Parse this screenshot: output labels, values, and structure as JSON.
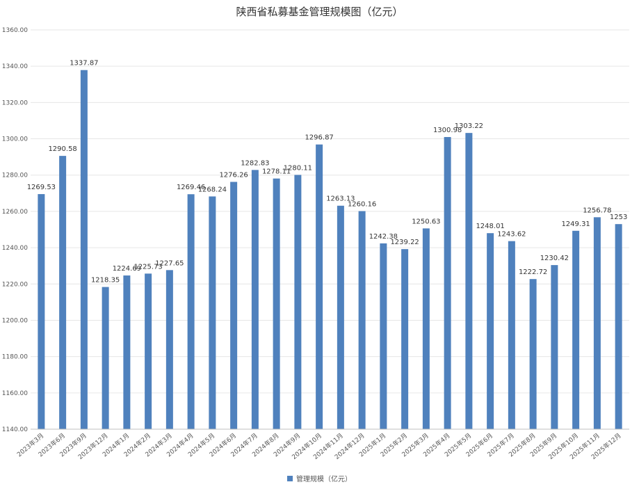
{
  "chart_data": {
    "type": "bar",
    "title": "陕西省私募基金管理规模图（亿元）",
    "categories": [
      "2023年3月",
      "2023年6月",
      "2023年9月",
      "2023年12月",
      "2024年1月",
      "2024年2月",
      "2024年3月",
      "2024年4月",
      "2024年5月",
      "2024年6月",
      "2024年7月",
      "2024年8月",
      "2024年9月",
      "2024年10月",
      "2024年11月",
      "2024年12月",
      "2025年1月",
      "2025年2月",
      "2025年3月",
      "2025年4月",
      "2025年5月",
      "2025年6月",
      "2025年7月",
      "2025年8月",
      "2025年9月",
      "2025年10月",
      "2025年11月",
      "2025年12月"
    ],
    "series": [
      {
        "name": "管理规模（亿元）",
        "values": [
          1269.53,
          1290.58,
          1337.87,
          1218.35,
          1224.69,
          1225.73,
          1227.65,
          1269.46,
          1268.24,
          1276.26,
          1282.83,
          1278.11,
          1280.11,
          1296.87,
          1263.13,
          1260.16,
          1242.38,
          1239.22,
          1250.63,
          1300.98,
          1303.22,
          1248.01,
          1243.62,
          1222.72,
          1230.42,
          1249.31,
          1256.78,
          1253
        ],
        "labels": [
          "1269.53",
          "1290.58",
          "1337.87",
          "1218.35",
          "1224.69",
          "1225.73",
          "1227.65",
          "1269.46",
          "1268.24",
          "1276.26",
          "1282.83",
          "1278.11",
          "1280.11",
          "1296.87",
          "1263.13",
          "1260.16",
          "1242.38",
          "1239.22",
          "1250.63",
          "1300.98",
          "1303.22",
          "1248.01",
          "1243.62",
          "1222.72",
          "1230.42",
          "1249.31",
          "1256.78",
          "1253"
        ]
      }
    ],
    "yticks": [
      "1140.00",
      "1160.00",
      "1180.00",
      "1200.00",
      "1220.00",
      "1240.00",
      "1260.00",
      "1280.00",
      "1300.00",
      "1320.00",
      "1340.00",
      "1360.00"
    ],
    "ylim": [
      1140,
      1360
    ],
    "grid": true,
    "legend": "bottom",
    "bar_color": "#4f81bd"
  }
}
